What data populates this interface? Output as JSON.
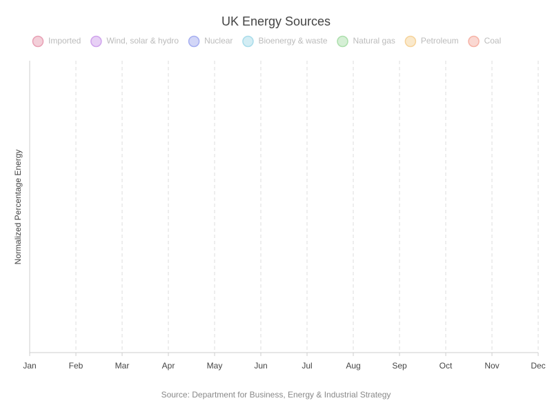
{
  "chart_data": {
    "type": "area",
    "title": "UK Energy Sources",
    "y_label": "Normalized Percentage Energy",
    "source": "Source: Department for Business, Energy & Industrial Strategy",
    "categories": [
      "Jan",
      "Feb",
      "Mar",
      "Apr",
      "May",
      "Jun",
      "Jul",
      "Aug",
      "Sep",
      "Oct",
      "Nov",
      "Dec"
    ],
    "grid": true,
    "series": [
      {
        "name": "Imported",
        "color": "#e8a0b4"
      },
      {
        "name": "Wind, solar & hydro",
        "color": "#cfa2ec"
      },
      {
        "name": "Nuclear",
        "color": "#a5aef0"
      },
      {
        "name": "Bioenergy & waste",
        "color": "#a8dcea"
      },
      {
        "name": "Natural gas",
        "color": "#acdfac"
      },
      {
        "name": "Petroleum",
        "color": "#f6d39a"
      },
      {
        "name": "Coal",
        "color": "#f6b2a6"
      }
    ]
  }
}
